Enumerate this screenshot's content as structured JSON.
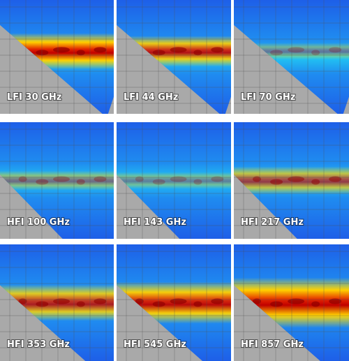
{
  "panels": [
    {
      "label": "LFI 30 GHz"
    },
    {
      "label": "LFI 44 GHz"
    },
    {
      "label": "LFI 70 GHz"
    },
    {
      "label": "HFI 100 GHz"
    },
    {
      "label": "HFI 143 GHz"
    },
    {
      "label": "HFI 217 GHz"
    },
    {
      "label": "HFI 353 GHz"
    },
    {
      "label": "HFI 545 GHz"
    },
    {
      "label": "HFI 857 GHz"
    }
  ]
}
